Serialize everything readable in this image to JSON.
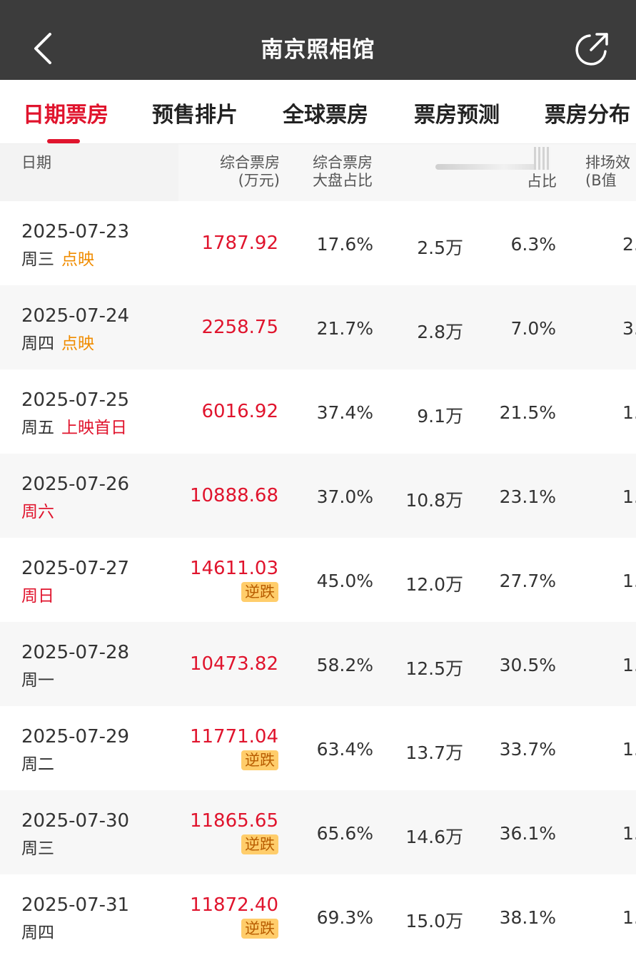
{
  "header": {
    "title": "南京照相馆",
    "back_icon": "chevron-left-icon",
    "share_icon": "share-arrow-icon",
    "background": "#3c3c3c"
  },
  "tabs": [
    {
      "label": "日期票房",
      "active": true
    },
    {
      "label": "预售排片",
      "active": false
    },
    {
      "label": "全球票房",
      "active": false
    },
    {
      "label": "票房预测",
      "active": false
    },
    {
      "label": "票房分布",
      "active": false
    }
  ],
  "accent_color": "#e0142d",
  "table": {
    "columns": {
      "date": "日期",
      "box_office": "综合票房\n(万元)",
      "share": "综合票房\n大盘占比",
      "pct_partial": "占比",
      "efficiency": "排场效\n(B值"
    },
    "rows": [
      {
        "date": "2025-07-23",
        "weekday": "周三",
        "tag": "点映",
        "box_office": "1787.92",
        "badge": "",
        "share": "17.6%",
        "people": "2.5万",
        "pct": "6.3%",
        "edge": "2."
      },
      {
        "date": "2025-07-24",
        "weekday": "周四",
        "tag": "点映",
        "box_office": "2258.75",
        "badge": "",
        "share": "21.7%",
        "people": "2.8万",
        "pct": "7.0%",
        "edge": "3."
      },
      {
        "date": "2025-07-25",
        "weekday": "周五",
        "tag": "上映首日",
        "box_office": "6016.92",
        "badge": "",
        "share": "37.4%",
        "people": "9.1万",
        "pct": "21.5%",
        "edge": "1."
      },
      {
        "date": "2025-07-26",
        "weekday": "周六",
        "tag": "",
        "box_office": "10888.68",
        "badge": "",
        "share": "37.0%",
        "people": "10.8万",
        "pct": "23.1%",
        "edge": "1."
      },
      {
        "date": "2025-07-27",
        "weekday": "周日",
        "tag": "",
        "box_office": "14611.03",
        "badge": "逆跌",
        "share": "45.0%",
        "people": "12.0万",
        "pct": "27.7%",
        "edge": "1."
      },
      {
        "date": "2025-07-28",
        "weekday": "周一",
        "tag": "",
        "box_office": "10473.82",
        "badge": "",
        "share": "58.2%",
        "people": "12.5万",
        "pct": "30.5%",
        "edge": "1."
      },
      {
        "date": "2025-07-29",
        "weekday": "周二",
        "tag": "",
        "box_office": "11771.04",
        "badge": "逆跌",
        "share": "63.4%",
        "people": "13.7万",
        "pct": "33.7%",
        "edge": "1."
      },
      {
        "date": "2025-07-30",
        "weekday": "周三",
        "tag": "",
        "box_office": "11865.65",
        "badge": "逆跌",
        "share": "65.6%",
        "people": "14.6万",
        "pct": "36.1%",
        "edge": "1."
      },
      {
        "date": "2025-07-31",
        "weekday": "周四",
        "tag": "",
        "box_office": "11872.40",
        "badge": "逆跌",
        "share": "69.3%",
        "people": "15.0万",
        "pct": "38.1%",
        "edge": "1."
      }
    ]
  }
}
